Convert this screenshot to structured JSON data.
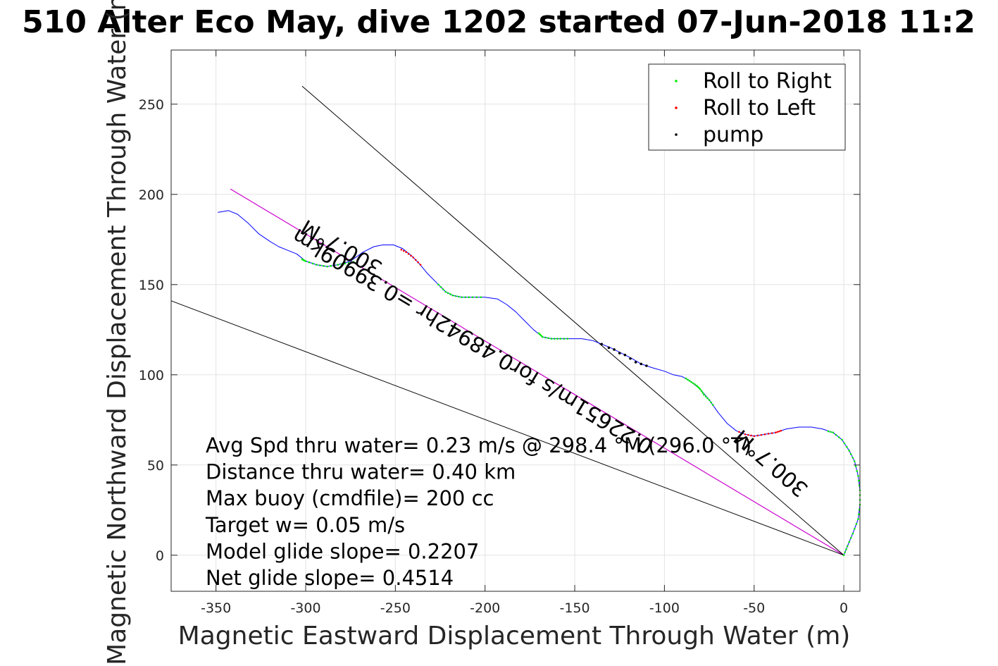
{
  "chart_data": {
    "type": "line",
    "title": "510 Alter Eco May, dive 1202 started 07-Jun-2018 11:2",
    "xlabel": "Magnetic Eastward Displacement Through Water (m)",
    "ylabel": "Magnetic Northward Displacement Through Water (m)",
    "xlim": [
      -375,
      9
    ],
    "ylim": [
      -20,
      280
    ],
    "xticks": [
      -350,
      -300,
      -250,
      -200,
      -150,
      -100,
      -50,
      0
    ],
    "yticks": [
      0,
      50,
      100,
      150,
      200,
      250
    ],
    "grid": true,
    "legend_position": "top-right",
    "colors": {
      "track": "#0000ff",
      "roll_right": "#00ee00",
      "roll_left": "#ff0000",
      "pump": "#000000",
      "heading_line": "#cc00cc",
      "bound_lines": "#000000"
    },
    "legend": [
      {
        "label": "Roll to Right",
        "color": "#00ee00"
      },
      {
        "label": "Roll to Left",
        "color": "#ff0000"
      },
      {
        "label": "pump",
        "color": "#000000"
      }
    ],
    "track": [
      [
        0,
        0
      ],
      [
        2,
        5
      ],
      [
        5,
        12
      ],
      [
        8,
        20
      ],
      [
        9,
        28
      ],
      [
        9,
        36
      ],
      [
        8,
        44
      ],
      [
        6,
        52
      ],
      [
        3,
        58
      ],
      [
        -1,
        64
      ],
      [
        -6,
        68
      ],
      [
        -12,
        70
      ],
      [
        -18,
        71
      ],
      [
        -25,
        71
      ],
      [
        -32,
        70
      ],
      [
        -38,
        68
      ],
      [
        -44,
        67
      ],
      [
        -50,
        66
      ],
      [
        -55,
        67
      ],
      [
        -60,
        69
      ],
      [
        -65,
        73
      ],
      [
        -70,
        79
      ],
      [
        -75,
        86
      ],
      [
        -80,
        92
      ],
      [
        -85,
        96
      ],
      [
        -90,
        99
      ],
      [
        -95,
        100
      ],
      [
        -100,
        102
      ],
      [
        -107,
        104
      ],
      [
        -113,
        106
      ],
      [
        -118,
        109
      ],
      [
        -124,
        112
      ],
      [
        -130,
        115
      ],
      [
        -135,
        117
      ],
      [
        -140,
        119
      ],
      [
        -146,
        120
      ],
      [
        -152,
        120
      ],
      [
        -158,
        120
      ],
      [
        -163,
        120
      ],
      [
        -168,
        121
      ],
      [
        -173,
        125
      ],
      [
        -178,
        130
      ],
      [
        -183,
        135
      ],
      [
        -188,
        139
      ],
      [
        -193,
        142
      ],
      [
        -200,
        143
      ],
      [
        -207,
        143
      ],
      [
        -213,
        143
      ],
      [
        -218,
        144
      ],
      [
        -222,
        146
      ],
      [
        -227,
        151
      ],
      [
        -232,
        156
      ],
      [
        -237,
        162
      ],
      [
        -241,
        166
      ],
      [
        -246,
        170
      ],
      [
        -251,
        172
      ],
      [
        -257,
        172
      ],
      [
        -262,
        171
      ],
      [
        -268,
        168
      ],
      [
        -275,
        163
      ],
      [
        -282,
        161
      ],
      [
        -288,
        160
      ],
      [
        -294,
        161
      ],
      [
        -300,
        163
      ],
      [
        -305,
        167
      ],
      [
        -310,
        169
      ],
      [
        -315,
        171
      ],
      [
        -320,
        174
      ],
      [
        -326,
        178
      ],
      [
        -332,
        184
      ],
      [
        -338,
        189
      ],
      [
        -343,
        191
      ],
      [
        -349,
        190
      ]
    ],
    "roll_right_segments": [
      [
        [
          0,
          0
        ],
        [
          2,
          5
        ],
        [
          5,
          12
        ],
        [
          8,
          20
        ],
        [
          9,
          28
        ],
        [
          9,
          36
        ],
        [
          8,
          44
        ],
        [
          6,
          52
        ],
        [
          3,
          58
        ],
        [
          -1,
          64
        ],
        [
          -6,
          68
        ],
        [
          -10,
          69
        ]
      ],
      [
        [
          -88,
          98
        ],
        [
          -85,
          96
        ],
        [
          -82,
          94
        ],
        [
          -80,
          92
        ],
        [
          -78,
          89
        ],
        [
          -75,
          86
        ],
        [
          -72,
          82
        ]
      ],
      [
        [
          -170,
          123
        ],
        [
          -168,
          121
        ],
        [
          -163,
          120
        ],
        [
          -158,
          120
        ],
        [
          -152,
          120
        ]
      ],
      [
        [
          -226,
          150
        ],
        [
          -222,
          146
        ],
        [
          -218,
          144
        ],
        [
          -213,
          143
        ],
        [
          -207,
          143
        ],
        [
          -200,
          143
        ]
      ],
      [
        [
          -302,
          164
        ],
        [
          -300,
          163
        ],
        [
          -294,
          161
        ],
        [
          -288,
          160
        ],
        [
          -282,
          161
        ],
        [
          -276,
          162
        ],
        [
          -272,
          163
        ]
      ]
    ],
    "roll_left_segments": [
      [
        [
          -35,
          69
        ],
        [
          -38,
          68
        ],
        [
          -44,
          67
        ],
        [
          -50,
          66
        ],
        [
          -55,
          67
        ],
        [
          -60,
          69
        ]
      ],
      [
        [
          -236,
          161
        ],
        [
          -240,
          165
        ],
        [
          -244,
          168
        ],
        [
          -248,
          170
        ]
      ]
    ],
    "pump_points": [
      [
        -135,
        117
      ],
      [
        -131,
        115
      ],
      [
        -128,
        114
      ],
      [
        -125,
        112
      ],
      [
        -122,
        111
      ],
      [
        -119,
        109
      ],
      [
        -116,
        107
      ],
      [
        -113,
        106
      ],
      [
        -110,
        105
      ]
    ],
    "reference_lines": [
      {
        "name": "heading",
        "from": [
          0,
          0
        ],
        "to": [
          -342,
          203
        ],
        "color": "#cc00cc"
      },
      {
        "name": "bound-upper",
        "from": [
          0,
          0
        ],
        "to": [
          -302,
          260
        ],
        "color": "#000000"
      },
      {
        "name": "bound-lower",
        "from": [
          0,
          0
        ],
        "to": [
          -375,
          141
        ],
        "color": "#000000"
      }
    ],
    "stats": [
      "Avg Spd thru water=  0.23 m/s @ 298.4 °M (296.0 °T)",
      "Distance thru water=  0.40 km",
      "Max buoy (cmdfile)= 200 cc",
      "Target w= 0.05 m/s",
      "Model glide slope= 0.2207",
      "Net glide slope= 0.4514"
    ],
    "annotations": [
      {
        "text": "300.7°M",
        "at": [
          -278,
          174
        ],
        "angle": 210
      },
      {
        "text": "0.22651m/s for0.48942hr =0.39909km",
        "at": [
          -205,
          122
        ],
        "angle": 211
      },
      {
        "text": "300.7°M",
        "at": [
          -38,
          54
        ],
        "angle": 221
      }
    ]
  }
}
